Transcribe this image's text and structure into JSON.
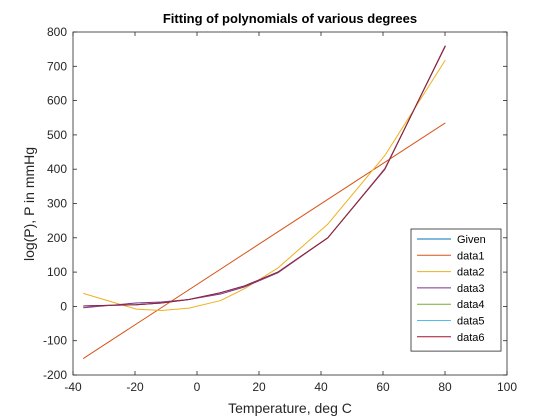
{
  "chart_data": {
    "type": "line",
    "title": "Fitting of polynomials of various degrees",
    "xlabel": "Temperature, deg C",
    "ylabel": "log(P), P in mmHg",
    "xlim": [
      -40,
      100
    ],
    "ylim": [
      -200,
      800
    ],
    "xticks": [
      -40,
      -20,
      0,
      20,
      40,
      60,
      80,
      100
    ],
    "yticks": [
      -200,
      -100,
      0,
      100,
      200,
      300,
      400,
      500,
      600,
      700,
      800
    ],
    "grid": false,
    "legend_position": "bottom-right",
    "series": [
      {
        "name": "Given",
        "color": "#0072BD",
        "x": [
          -36.7,
          -19.6,
          -11.5,
          -2.6,
          7.6,
          15.4,
          26.1,
          42.2,
          60.6,
          80.1
        ],
        "y": [
          1,
          5,
          10,
          20,
          40,
          60,
          100,
          200,
          400,
          760
        ]
      },
      {
        "name": "data1",
        "color": "#D95319",
        "x": [
          -36.7,
          80.1
        ],
        "y": [
          -152,
          535
        ]
      },
      {
        "name": "data2",
        "color": "#EDB120",
        "x": [
          -36.7,
          -19.6,
          -11.5,
          -2.6,
          7.6,
          15.4,
          26.1,
          42.2,
          60.6,
          80.1
        ],
        "y": [
          38,
          -8,
          -12,
          -5,
          17,
          52,
          112,
          240,
          440,
          718
        ]
      },
      {
        "name": "data3",
        "color": "#7E2F8E",
        "x": [
          -36.7,
          -19.6,
          -11.5,
          -2.6,
          7.6,
          15.4,
          26.1,
          42.2,
          60.6,
          80.1
        ],
        "y": [
          -4,
          10,
          13,
          20,
          36,
          57,
          98,
          200,
          402,
          758
        ]
      },
      {
        "name": "data4",
        "color": "#77AC30",
        "x": [
          -36.7,
          -19.6,
          -11.5,
          -2.6,
          7.6,
          15.4,
          26.1,
          42.2,
          60.6,
          80.1
        ],
        "y": [
          1,
          5,
          10,
          20,
          40,
          60,
          100,
          200,
          400,
          760
        ]
      },
      {
        "name": "data5",
        "color": "#4DBEEE",
        "x": [
          -36.7,
          -19.6,
          -11.5,
          -2.6,
          7.6,
          15.4,
          26.1,
          42.2,
          60.6,
          80.1
        ],
        "y": [
          1,
          5,
          10,
          20,
          40,
          60,
          100,
          200,
          400,
          760
        ]
      },
      {
        "name": "data6",
        "color": "#A2142F",
        "x": [
          -36.7,
          -19.6,
          -11.5,
          -2.6,
          7.6,
          15.4,
          26.1,
          42.2,
          60.6,
          80.1
        ],
        "y": [
          1,
          5,
          10,
          20,
          40,
          60,
          100,
          200,
          400,
          760
        ]
      }
    ]
  }
}
